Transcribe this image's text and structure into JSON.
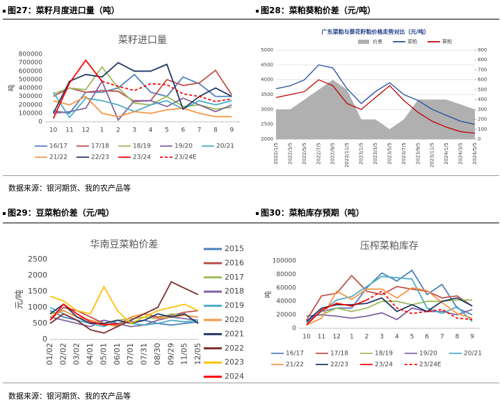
{
  "sources": [
    "数据来源：银河期货、我的农产品等",
    "数据来源：银河期货、我的农产品等"
  ],
  "figures": [
    {
      "caption": "图27：菜籽月度进口量（吨）",
      "chart_data": {
        "type": "line",
        "title": "菜籽进口量",
        "y_label": "吨",
        "legend": "bottom",
        "categories": [
          "10",
          "11",
          "12",
          "1",
          "2",
          "3",
          "4",
          "5",
          "6",
          "7",
          "8",
          "9"
        ],
        "ylim": [
          0,
          800000
        ],
        "yticks": [
          0,
          100000,
          200000,
          300000,
          400000,
          500000,
          600000,
          700000,
          800000
        ],
        "series": [
          {
            "name": "16/17",
            "color": "#4f81bd",
            "values": [
              130000,
              100000,
              350000,
              350000,
              400000,
              560000,
              350000,
              300000,
              530000,
              450000,
              300000,
              300000
            ]
          },
          {
            "name": "17/18",
            "color": "#c0504d",
            "values": [
              300000,
              400000,
              350000,
              370000,
              360000,
              240000,
              250000,
              500000,
              430000,
              460000,
              610000,
              320000
            ]
          },
          {
            "name": "18/19",
            "color": "#9bbb59",
            "values": [
              330000,
              400000,
              380000,
              650000,
              400000,
              220000,
              200000,
              300000,
              180000,
              200000,
              150000,
              170000
            ]
          },
          {
            "name": "19/20",
            "color": "#8064a2",
            "values": [
              100000,
              120000,
              160000,
              480000,
              20000,
              250000,
              250000,
              180000,
              280000,
              200000,
              120000,
              200000
            ]
          },
          {
            "name": "20/21",
            "color": "#4bacc6",
            "values": [
              350000,
              50000,
              280000,
              250000,
              200000,
              120000,
              200000,
              250000,
              150000,
              250000,
              200000,
              250000
            ]
          },
          {
            "name": "21/22",
            "color": "#f79646",
            "values": [
              250000,
              200000,
              300000,
              100000,
              60000,
              120000,
              100000,
              140000,
              160000,
              100000,
              60000,
              60000
            ]
          },
          {
            "name": "22/23",
            "color": "#1f3864",
            "values": [
              100000,
              480000,
              560000,
              530000,
              700000,
              600000,
              600000,
              680000,
              150000,
              300000,
              400000,
              300000
            ]
          },
          {
            "name": "23/24",
            "color": "#ff0000",
            "values": [
              40000,
              460000,
              730000,
              480000,
              null,
              null,
              null,
              null,
              null,
              null,
              null,
              null
            ]
          },
          {
            "name": "23/24E",
            "color": "#ff0000",
            "dash": true,
            "values": [
              null,
              null,
              null,
              480000,
              420000,
              370000,
              450000,
              440000,
              330000,
              300000,
              240000,
              270000
            ]
          }
        ]
      }
    },
    {
      "caption": "图28：菜粕葵粕价差（元/吨）",
      "chart_data": {
        "type": "line",
        "title": "广东菜粕与葵花籽粕价格走势对比（元/吨）",
        "legend": "top",
        "categories": [
          "2022/1/5",
          "2022/3/5",
          "2022/5/5",
          "2022/7/5",
          "2022/9/5",
          "2022/11/5",
          "2023/1/5",
          "2023/3/5",
          "2023/5/5",
          "2023/7/5",
          "2023/9/5",
          "2023/11/5",
          "2024/1/5",
          "2024/3/5",
          "2024/5/5"
        ],
        "ylim": [
          2000,
          5000
        ],
        "yticks": [
          2000,
          2500,
          3000,
          3500,
          4000,
          4500,
          5000
        ],
        "y2lim": [
          0,
          900
        ],
        "y2ticks": [
          0,
          100,
          200,
          300,
          400,
          500,
          600,
          700,
          800,
          900
        ],
        "series": [
          {
            "name": "价差",
            "color": "#b0b0b0",
            "type": "area",
            "axis": "y2",
            "values": [
              300,
              300,
              400,
              500,
              600,
              500,
              200,
              200,
              100,
              200,
              400,
              400,
              400,
              350,
              300
            ]
          },
          {
            "name": "菜粕",
            "color": "#1f4e9c",
            "values": [
              3700,
              3800,
              4000,
              4500,
              4400,
              3700,
              3200,
              3600,
              3900,
              3500,
              3300,
              3000,
              2800,
              2600,
              2500
            ]
          },
          {
            "name": "葵粕",
            "color": "#c00000",
            "values": [
              3400,
              3500,
              3600,
              4000,
              3800,
              3200,
              3000,
              3400,
              3800,
              3300,
              2900,
              2600,
              2400,
              2250,
              2200
            ]
          }
        ]
      }
    },
    {
      "caption": "图29：豆菜粕价差（元/吨）",
      "chart_data": {
        "type": "line",
        "title": "华南豆菜粕价差",
        "y_label": "元/吨",
        "legend": "right",
        "categories": [
          "01/02",
          "02/02",
          "03/02",
          "04/01",
          "05/01",
          "06/01",
          "07/01",
          "07/31",
          "08/30",
          "09/29",
          "11/05",
          "12/05"
        ],
        "ylim": [
          0,
          2500
        ],
        "yticks": [
          0,
          500,
          1000,
          1500,
          2000,
          2500
        ],
        "series": [
          {
            "name": "2015",
            "color": "#4a7ebb",
            "values": [
              900,
              700,
              600,
              500,
              600,
              500,
              550,
              600,
              500,
              450,
              500,
              550
            ]
          },
          {
            "name": "2016",
            "color": "#c0504d",
            "values": [
              600,
              1000,
              900,
              700,
              500,
              450,
              700,
              800,
              700,
              750,
              850,
              900
            ]
          },
          {
            "name": "2017",
            "color": "#9bbb59",
            "values": [
              800,
              900,
              700,
              600,
              500,
              600,
              650,
              700,
              650,
              800,
              750,
              700
            ]
          },
          {
            "name": "2018",
            "color": "#8064a2",
            "values": [
              700,
              600,
              500,
              400,
              600,
              500,
              400,
              450,
              600,
              700,
              650,
              600
            ]
          },
          {
            "name": "2019",
            "color": "#4bacc6",
            "values": [
              1000,
              800,
              600,
              500,
              400,
              600,
              500,
              450,
              500,
              600,
              550,
              600
            ]
          },
          {
            "name": "2020",
            "color": "#f79646",
            "values": [
              700,
              900,
              700,
              600,
              500,
              400,
              700,
              800,
              650,
              700,
              750,
              700
            ]
          },
          {
            "name": "2021",
            "color": "#1f3864",
            "values": [
              800,
              1100,
              700,
              500,
              500,
              600,
              500,
              600,
              800,
              700,
              800,
              500
            ]
          },
          {
            "name": "2022",
            "color": "#7b2c2c",
            "values": [
              500,
              800,
              600,
              300,
              200,
              400,
              600,
              800,
              1000,
              1800,
              1600,
              1400
            ]
          },
          {
            "name": "2023",
            "color": "#ffc000",
            "values": [
              1350,
              1200,
              900,
              800,
              1650,
              900,
              500,
              700,
              900,
              1000,
              1100,
              900
            ]
          },
          {
            "name": "2024",
            "color": "#ff0000",
            "values": [
              600,
              1100,
              800,
              550,
              450,
              500,
              null,
              null,
              null,
              null,
              null,
              null
            ]
          }
        ]
      }
    },
    {
      "caption": "图30：菜粕库存预期（吨）",
      "chart_data": {
        "type": "line",
        "title": "压榨菜粕库存",
        "y_label": "吨",
        "legend": "bottom",
        "categories": [
          "10",
          "11",
          "12",
          "1",
          "2",
          "3",
          "4",
          "5",
          "6",
          "7",
          "8",
          "9"
        ],
        "ylim": [
          0,
          100000
        ],
        "yticks": [
          0,
          20000,
          40000,
          60000,
          80000,
          100000
        ],
        "series": [
          {
            "name": "16/17",
            "color": "#4f81bd",
            "values": [
              10000,
              25000,
              30000,
              30000,
              60000,
              82000,
              70000,
              86000,
              50000,
              65000,
              30000,
              20000
            ]
          },
          {
            "name": "17/18",
            "color": "#c0504d",
            "values": [
              12000,
              48000,
              52000,
              78000,
              55000,
              50000,
              62000,
              58000,
              55000,
              45000,
              48000,
              33000
            ]
          },
          {
            "name": "18/19",
            "color": "#9bbb59",
            "values": [
              18000,
              20000,
              30000,
              25000,
              30000,
              40000,
              40000,
              35000,
              40000,
              40000,
              42000,
              42000
            ]
          },
          {
            "name": "19/20",
            "color": "#8064a2",
            "values": [
              18000,
              20000,
              18000,
              15000,
              18000,
              23000,
              13000,
              30000,
              25000,
              25000,
              20000,
              28000
            ]
          },
          {
            "name": "20/21",
            "color": "#4bacc6",
            "values": [
              8000,
              25000,
              42000,
              47000,
              62000,
              77000,
              75000,
              73000,
              30000,
              22000,
              32000,
              10000
            ]
          },
          {
            "name": "21/22",
            "color": "#f79646",
            "values": [
              5000,
              15000,
              55000,
              43000,
              58000,
              58000,
              45000,
              60000,
              56000,
              38000,
              22000,
              15000
            ]
          },
          {
            "name": "22/23",
            "color": "#1f3864",
            "values": [
              10000,
              30000,
              35000,
              35000,
              37000,
              45000,
              25000,
              35000,
              25000,
              40000,
              45000,
              33000
            ]
          },
          {
            "name": "23/24",
            "color": "#ff0000",
            "values": [
              5000,
              27000,
              37000,
              33000,
              42000,
              null,
              null,
              null,
              null,
              null,
              null,
              null
            ]
          },
          {
            "name": "23/24E",
            "color": "#ff0000",
            "dash": true,
            "values": [
              null,
              null,
              null,
              null,
              42000,
              55000,
              30000,
              22000,
              25000,
              28000,
              15000,
              13000
            ]
          }
        ]
      }
    }
  ]
}
